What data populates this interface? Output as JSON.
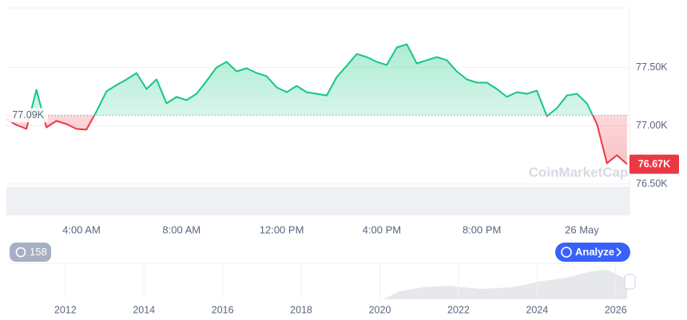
{
  "chart_data": {
    "type": "line",
    "x": [
      1,
      1.4,
      1.8,
      2.2,
      2.6,
      3,
      3.4,
      3.8,
      4.2,
      4.6,
      5,
      5.4,
      5.8,
      6.2,
      6.6,
      7,
      7.4,
      7.8,
      8.2,
      8.6,
      9,
      9.4,
      9.8,
      10.2,
      10.6,
      11,
      11.4,
      11.8,
      12.2,
      12.6,
      13,
      13.4,
      13.8,
      14.2,
      14.6,
      15,
      15.4,
      15.8,
      16.2,
      16.6,
      17,
      17.4,
      17.8,
      18.2,
      18.6,
      19,
      19.4,
      19.8,
      20.2,
      20.6,
      21,
      21.4,
      21.8,
      22.2,
      22.6,
      23,
      23.4,
      23.8,
      24.2,
      24.6,
      25,
      25.4,
      25.8
    ],
    "series": [
      {
        "values": [
          77055,
          77007,
          76973,
          77308,
          76986,
          77041,
          77014,
          76973,
          76966,
          77123,
          77295,
          77349,
          77397,
          77452,
          77315,
          77397,
          77192,
          77247,
          77219,
          77274,
          77384,
          77500,
          77548,
          77466,
          77493,
          77452,
          77425,
          77329,
          77288,
          77342,
          77288,
          77274,
          77260,
          77418,
          77514,
          77616,
          77589,
          77548,
          77521,
          77671,
          77699,
          77534,
          77562,
          77589,
          77562,
          77466,
          77397,
          77370,
          77370,
          77315,
          77247,
          77288,
          77274,
          77301,
          77082,
          77151,
          77260,
          77274,
          77192,
          77014,
          76678,
          76747,
          76670
        ]
      }
    ],
    "colors": {
      "above": "#16c784",
      "below": "#ea3943"
    },
    "reference_line": {
      "value": 77090,
      "label": "77.09K"
    },
    "price_tag": {
      "value": 76670,
      "label": "76.67K"
    },
    "xlim": [
      1,
      25.9
    ],
    "xticks": [
      {
        "value": 4,
        "label": "4:00 AM"
      },
      {
        "value": 8,
        "label": "8:00 AM"
      },
      {
        "value": 12,
        "label": "12:00 PM"
      },
      {
        "value": 16,
        "label": "4:00 PM"
      },
      {
        "value": 20,
        "label": "8:00 PM"
      },
      {
        "value": 24,
        "label": "26 May"
      }
    ],
    "ylim": [
      76230,
      78010
    ],
    "yticks": [
      {
        "value": 76500,
        "label": "76.50K"
      },
      {
        "value": 77000,
        "label": "77.00K"
      },
      {
        "value": 77500,
        "label": "77.50K"
      }
    ],
    "grid": true,
    "navigator": {
      "xlim": [
        2010.5,
        2026.35
      ],
      "xticks": [
        2012,
        2014,
        2016,
        2018,
        2020,
        2022,
        2024,
        2026
      ]
    }
  },
  "controls": {
    "history_count": 158,
    "analyze_button": "Analyze"
  },
  "watermark": "CoinMarketCap"
}
